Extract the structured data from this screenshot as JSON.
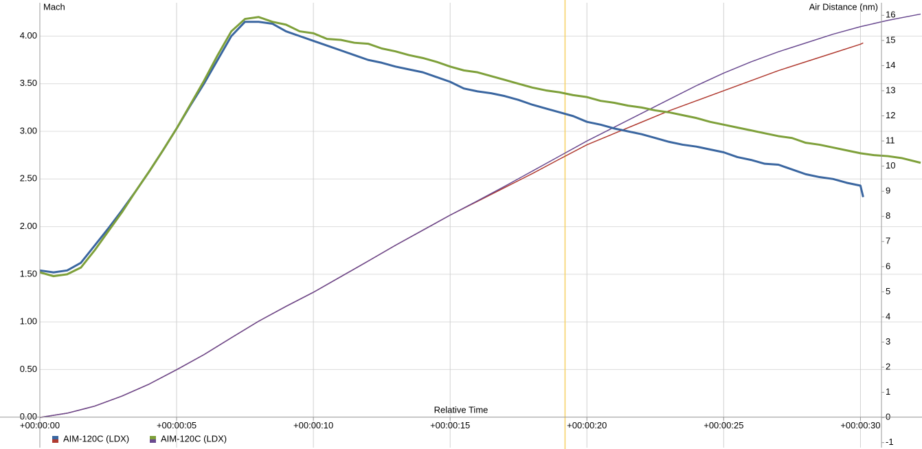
{
  "chart_data": {
    "type": "line",
    "y_label": "Mach",
    "y2_label": "Air Distance (nm)",
    "x_label": "Relative Time",
    "y_color": "#3a66a0",
    "y2_color": "#b03a30",
    "cursor": 19.2,
    "cursor_color": "#f5d060",
    "xlim": [
      0,
      32.25
    ],
    "ylim": [
      -0.32,
      4.35
    ],
    "y2lim": [
      -1.2,
      16.5
    ],
    "grid": true,
    "xticks": [
      {
        "value": 0,
        "label": "+00:00:00"
      },
      {
        "value": 5,
        "label": "+00:00:05"
      },
      {
        "value": 10,
        "label": "+00:00:10"
      },
      {
        "value": 15,
        "label": "+00:00:15"
      },
      {
        "value": 20,
        "label": "+00:00:20"
      },
      {
        "value": 25,
        "label": "+00:00:25"
      },
      {
        "value": 30,
        "label": "+00:00:30"
      }
    ],
    "yticks": [
      {
        "value": 0,
        "label": "0.00"
      },
      {
        "value": 0.5,
        "label": "0.50"
      },
      {
        "value": 1,
        "label": "1.00"
      },
      {
        "value": 1.5,
        "label": "1.50"
      },
      {
        "value": 2,
        "label": "2.00"
      },
      {
        "value": 2.5,
        "label": "2.50"
      },
      {
        "value": 3,
        "label": "3.00"
      },
      {
        "value": 3.5,
        "label": "3.50"
      },
      {
        "value": 4,
        "label": "4.00"
      }
    ],
    "y2ticks": [
      -1,
      0,
      1,
      2,
      3,
      4,
      5,
      6,
      7,
      8,
      9,
      10,
      11,
      12,
      13,
      14,
      15,
      16
    ],
    "series": [
      {
        "name": "AIM-120C (LDX)",
        "mach": {
          "color": "#3a66a0",
          "x": [
            0,
            0.5,
            1,
            1.5,
            2,
            2.5,
            3,
            3.5,
            4,
            4.5,
            5,
            5.5,
            6,
            6.5,
            7,
            7.5,
            8,
            8.5,
            9,
            9.5,
            10,
            10.5,
            11,
            11.5,
            12,
            12.5,
            13,
            13.5,
            14,
            14.5,
            15,
            15.5,
            16,
            16.5,
            17,
            17.5,
            18,
            18.5,
            19,
            19.5,
            20,
            20.5,
            21,
            21.5,
            22,
            22.5,
            23,
            23.5,
            24,
            24.5,
            25,
            25.5,
            26,
            26.5,
            27,
            27.5,
            28,
            28.5,
            29,
            29.5,
            30,
            30.1
          ],
          "values": [
            1.54,
            1.52,
            1.54,
            1.62,
            1.8,
            1.98,
            2.17,
            2.37,
            2.58,
            2.8,
            3.03,
            3.27,
            3.5,
            3.75,
            4.0,
            4.15,
            4.15,
            4.13,
            4.05,
            4.0,
            3.95,
            3.9,
            3.85,
            3.8,
            3.75,
            3.72,
            3.68,
            3.65,
            3.62,
            3.57,
            3.52,
            3.45,
            3.42,
            3.4,
            3.37,
            3.33,
            3.28,
            3.24,
            3.2,
            3.16,
            3.1,
            3.07,
            3.03,
            3.0,
            2.97,
            2.93,
            2.89,
            2.86,
            2.84,
            2.81,
            2.78,
            2.73,
            2.7,
            2.66,
            2.65,
            2.6,
            2.55,
            2.52,
            2.5,
            2.46,
            2.43,
            2.31
          ]
        },
        "air_distance": {
          "color": "#b03a30",
          "axis": "y2",
          "x": [
            0,
            1,
            2,
            3,
            4,
            5,
            6,
            7,
            8,
            9,
            10,
            11,
            12,
            13,
            14,
            15,
            16,
            17,
            18,
            19,
            20,
            21,
            22,
            23,
            24,
            25,
            26,
            27,
            28,
            29,
            30,
            30.1
          ],
          "values": [
            0,
            0.17,
            0.45,
            0.85,
            1.33,
            1.9,
            2.5,
            3.17,
            3.83,
            4.42,
            4.98,
            5.6,
            6.22,
            6.85,
            7.45,
            8.05,
            8.6,
            9.15,
            9.7,
            10.28,
            10.85,
            11.3,
            11.75,
            12.2,
            12.6,
            13.0,
            13.4,
            13.8,
            14.15,
            14.5,
            14.85,
            14.9
          ]
        }
      },
      {
        "name": "AIM-120C (LDX)",
        "mach": {
          "color": "#7ea03a",
          "x": [
            0,
            0.5,
            1,
            1.5,
            2,
            2.5,
            3,
            3.5,
            4,
            4.5,
            5,
            5.5,
            6,
            6.5,
            7,
            7.5,
            8,
            8.5,
            9,
            9.5,
            10,
            10.5,
            11,
            11.5,
            12,
            12.5,
            13,
            13.5,
            14,
            14.5,
            15,
            15.5,
            16,
            16.5,
            17,
            17.5,
            18,
            18.5,
            19,
            19.5,
            20,
            20.5,
            21,
            21.5,
            22,
            22.5,
            23,
            23.5,
            24,
            24.5,
            25,
            25.5,
            26,
            26.5,
            27,
            27.5,
            28,
            28.5,
            29,
            29.5,
            30,
            30.5,
            31,
            31.5,
            32.2
          ],
          "values": [
            1.52,
            1.48,
            1.5,
            1.57,
            1.75,
            1.95,
            2.15,
            2.37,
            2.58,
            2.8,
            3.03,
            3.28,
            3.53,
            3.8,
            4.05,
            4.18,
            4.2,
            4.15,
            4.12,
            4.05,
            4.03,
            3.97,
            3.96,
            3.93,
            3.92,
            3.87,
            3.84,
            3.8,
            3.77,
            3.73,
            3.68,
            3.64,
            3.62,
            3.58,
            3.54,
            3.5,
            3.46,
            3.43,
            3.41,
            3.38,
            3.36,
            3.32,
            3.3,
            3.27,
            3.25,
            3.22,
            3.2,
            3.17,
            3.14,
            3.1,
            3.07,
            3.04,
            3.01,
            2.98,
            2.95,
            2.93,
            2.88,
            2.86,
            2.83,
            2.8,
            2.77,
            2.75,
            2.74,
            2.72,
            2.67
          ]
        },
        "air_distance": {
          "color": "#6a4a90",
          "axis": "y2",
          "x": [
            0,
            1,
            2,
            3,
            4,
            5,
            6,
            7,
            8,
            9,
            10,
            11,
            12,
            13,
            14,
            15,
            16,
            17,
            18,
            19,
            20,
            21,
            22,
            23,
            24,
            25,
            26,
            27,
            28,
            29,
            30,
            31,
            32.2
          ],
          "values": [
            0,
            0.17,
            0.45,
            0.85,
            1.33,
            1.9,
            2.5,
            3.17,
            3.83,
            4.42,
            4.98,
            5.6,
            6.22,
            6.85,
            7.45,
            8.05,
            8.62,
            9.2,
            9.8,
            10.4,
            11.0,
            11.55,
            12.1,
            12.65,
            13.2,
            13.7,
            14.15,
            14.55,
            14.9,
            15.25,
            15.55,
            15.8,
            16.05
          ]
        }
      }
    ]
  }
}
